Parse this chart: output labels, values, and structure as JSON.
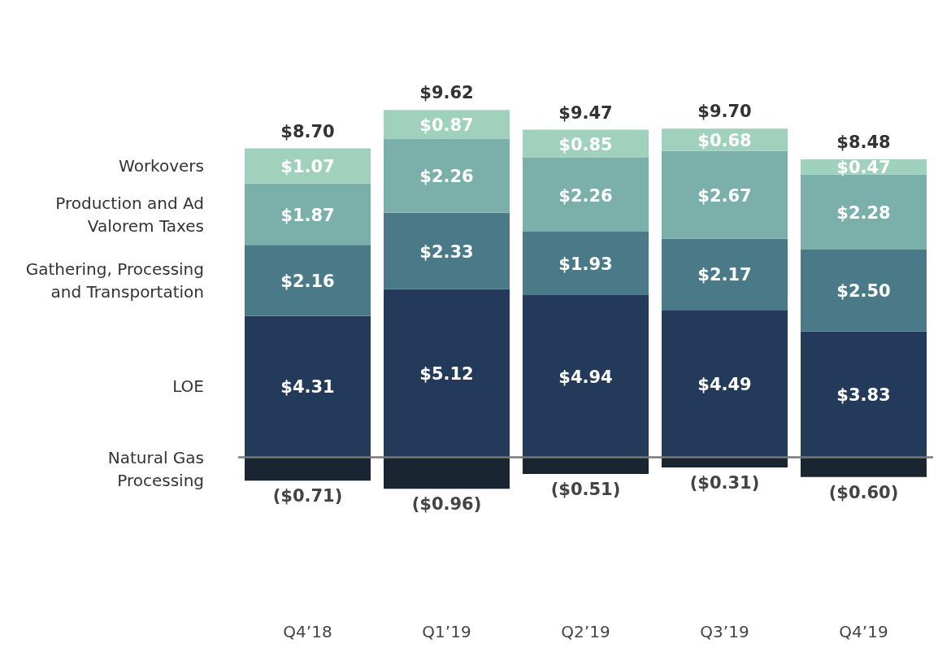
{
  "chart_data": {
    "type": "bar",
    "stacked": true,
    "legend": "left",
    "categories": [
      "Q4’18",
      "Q1’19",
      "Q2’19",
      "Q3’19",
      "Q4’19"
    ],
    "series": [
      {
        "name": "Natural Gas Processing",
        "color": "#1a2532",
        "values": [
          -0.71,
          -0.96,
          -0.51,
          -0.31,
          -0.6
        ],
        "value_labels": [
          "($0.71)",
          "($0.96)",
          "($0.51)",
          "($0.31)",
          "($0.60)"
        ]
      },
      {
        "name": "LOE",
        "color": "#233a5a",
        "values": [
          4.31,
          5.12,
          4.94,
          4.49,
          3.83
        ],
        "value_labels": [
          "$4.31",
          "$5.12",
          "$4.94",
          "$4.49",
          "$3.83"
        ]
      },
      {
        "name": "Gathering, Processing and Transportation",
        "color": "#4a7a87",
        "values": [
          2.16,
          2.33,
          1.93,
          2.17,
          2.5
        ],
        "value_labels": [
          "$2.16",
          "$2.33",
          "$1.93",
          "$2.17",
          "$2.50"
        ]
      },
      {
        "name": "Production and Ad Valorem Taxes",
        "color": "#7aafaa",
        "values": [
          1.87,
          2.26,
          2.26,
          2.67,
          2.28
        ],
        "value_labels": [
          "$1.87",
          "$2.26",
          "$2.26",
          "$2.67",
          "$2.28"
        ]
      },
      {
        "name": "Workovers",
        "color": "#a0d1bd",
        "values": [
          1.07,
          0.87,
          0.85,
          0.68,
          0.47
        ],
        "value_labels": [
          "$1.07",
          "$0.87",
          "$0.85",
          "$0.68",
          "$0.47"
        ]
      }
    ],
    "totals": [
      "$8.70",
      "$9.62",
      "$9.47",
      "$9.70",
      "$8.48"
    ],
    "ref_lines": [
      {
        "axis": "y",
        "value": 0,
        "color": "#777777"
      }
    ]
  }
}
